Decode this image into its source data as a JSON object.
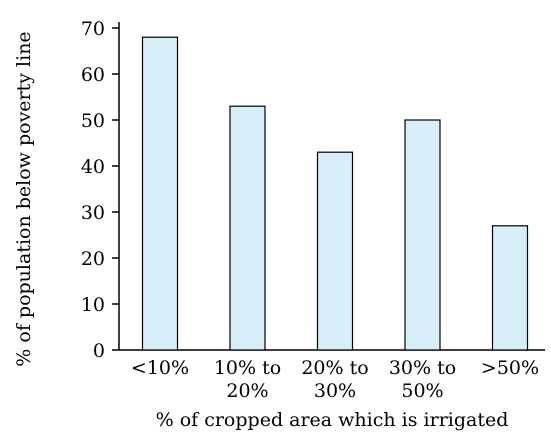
{
  "chart_data": {
    "type": "bar",
    "categories": [
      [
        "<10%"
      ],
      [
        "10% to",
        "20%"
      ],
      [
        "20% to",
        "30%"
      ],
      [
        "30% to",
        "50%"
      ],
      [
        ">50%"
      ]
    ],
    "values": [
      68,
      53,
      43,
      50,
      27
    ],
    "title": "",
    "xlabel": "% of cropped area which is irrigated",
    "ylabel": "% of population below poverty line",
    "ylim": [
      0,
      70
    ],
    "yticks": [
      0,
      10,
      20,
      30,
      40,
      50,
      60,
      70
    ],
    "grid": false,
    "colors": {
      "bar_fill": "#d6eef8",
      "bar_stroke": "#000000",
      "axis": "#000000"
    }
  }
}
